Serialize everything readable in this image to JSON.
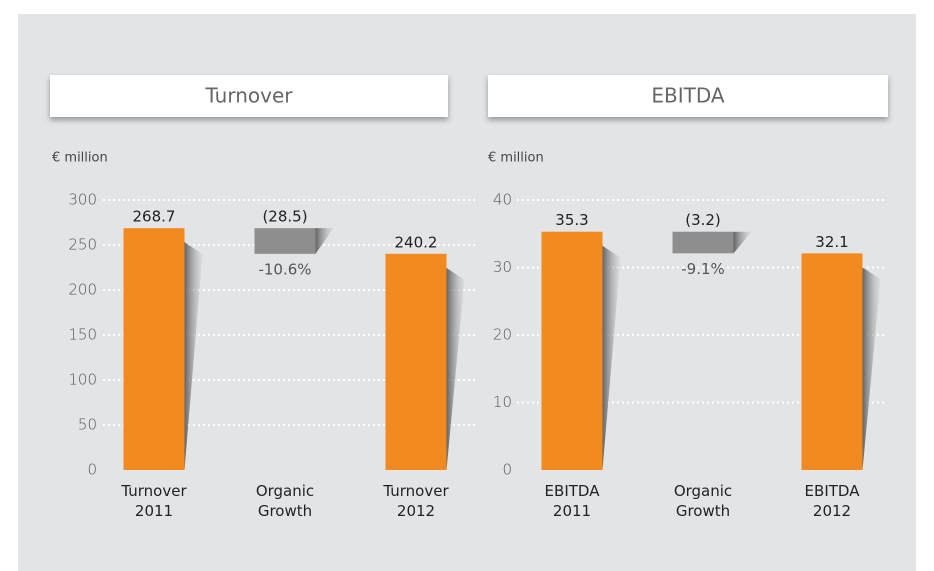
{
  "chart_data": [
    {
      "type": "waterfall",
      "title": "Turnover",
      "y_label": "€ million",
      "categories": [
        "Turnover 2011",
        "Organic Growth",
        "Turnover 2012"
      ],
      "measures": [
        "absolute",
        "relative",
        "absolute"
      ],
      "values": [
        268.7,
        -28.5,
        240.2
      ],
      "value_labels": [
        "268.7",
        "(28.5)",
        "240.2"
      ],
      "annotation": "-10.6%",
      "colors": [
        "#f28a1f",
        "#8e8e8e",
        "#f28a1f"
      ],
      "ylim": [
        0,
        300
      ],
      "yticks": [
        0,
        50,
        100,
        150,
        200,
        250,
        300
      ],
      "grid": true
    },
    {
      "type": "waterfall",
      "title": "EBITDA",
      "y_label": "€ million",
      "categories": [
        "EBITDA 2011",
        "Organic Growth",
        "EBITDA 2012"
      ],
      "measures": [
        "absolute",
        "relative",
        "absolute"
      ],
      "values": [
        35.3,
        -3.2,
        32.1
      ],
      "value_labels": [
        "35.3",
        "(3.2)",
        "32.1"
      ],
      "annotation": "-9.1%",
      "colors": [
        "#f28a1f",
        "#8e8e8e",
        "#f28a1f"
      ],
      "ylim": [
        0,
        40
      ],
      "yticks": [
        0,
        10,
        20,
        30,
        40
      ],
      "grid": true
    }
  ]
}
